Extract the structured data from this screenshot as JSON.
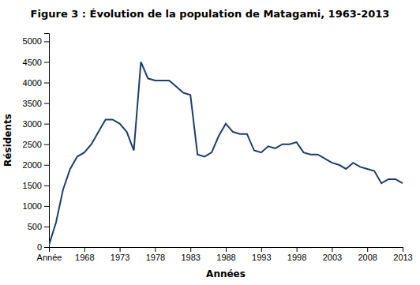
{
  "chart_data": {
    "type": "line",
    "title": "Figure 3 : Évolution de la population de Matagami, 1963-2013",
    "xlabel": "Années",
    "ylabel": "Résidents",
    "color": "#1F3D6B",
    "x": [
      1963,
      1964,
      1965,
      1966,
      1967,
      1968,
      1969,
      1970,
      1971,
      1972,
      1973,
      1974,
      1975,
      1976,
      1977,
      1978,
      1979,
      1980,
      1981,
      1982,
      1983,
      1984,
      1985,
      1986,
      1987,
      1988,
      1989,
      1990,
      1991,
      1992,
      1993,
      1994,
      1995,
      1996,
      1997,
      1998,
      1999,
      2000,
      2001,
      2002,
      2003,
      2004,
      2005,
      2006,
      2007,
      2008,
      2009,
      2010,
      2011,
      2012,
      2013
    ],
    "values": [
      50,
      600,
      1400,
      1900,
      2200,
      2300,
      2500,
      2800,
      3100,
      3100,
      3000,
      2800,
      2350,
      4500,
      4100,
      4050,
      4050,
      4050,
      3900,
      3750,
      3700,
      2250,
      2200,
      2300,
      2700,
      3000,
      2800,
      2750,
      2750,
      2350,
      2300,
      2450,
      2400,
      2500,
      2500,
      2550,
      2300,
      2250,
      2250,
      2150,
      2050,
      2000,
      1900,
      2050,
      1950,
      1900,
      1850,
      1550,
      1650,
      1650,
      1550
    ],
    "xlim": [
      1963,
      2013
    ],
    "xticks": [
      {
        "value": 1963,
        "label": "Année"
      },
      1968,
      1973,
      1978,
      1983,
      1988,
      1993,
      1998,
      2003,
      2008,
      2013
    ],
    "ylim": [
      0,
      5200
    ],
    "yticks": [
      0,
      500,
      1000,
      1500,
      2000,
      2500,
      3000,
      3500,
      4000,
      4500,
      5000
    ],
    "grid": false
  }
}
